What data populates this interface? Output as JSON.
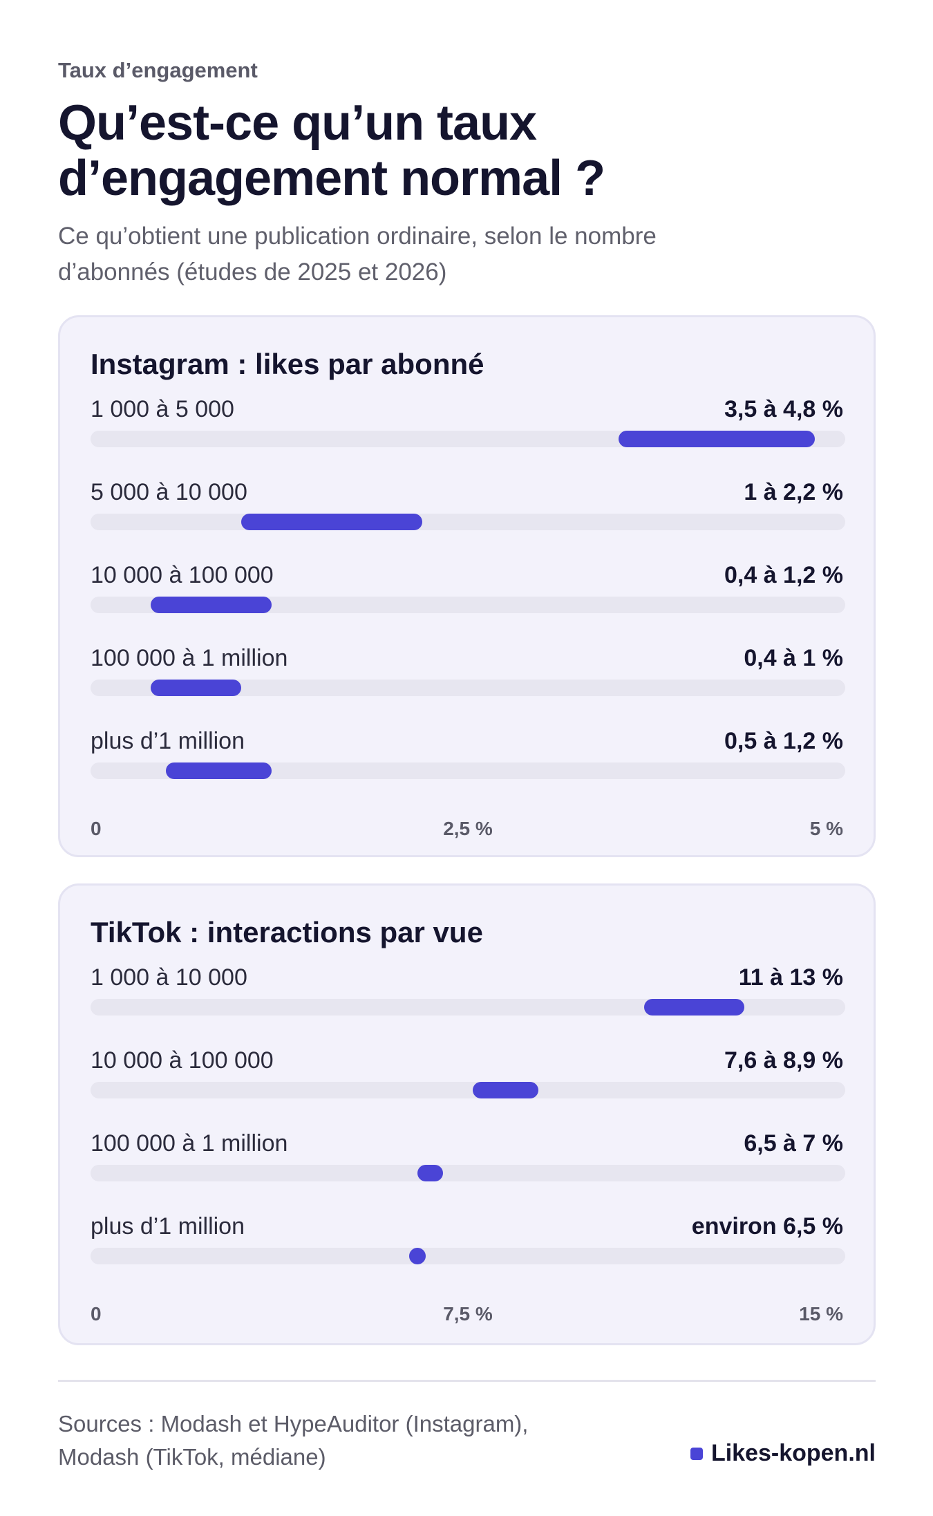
{
  "header": {
    "kicker": "Taux d’engagement",
    "title_line1": "Qu’est-ce qu’un taux",
    "title_line2": "d’engagement normal ?",
    "subtitle_line1": "Ce qu’obtient une publication ordinaire, selon le nombre",
    "subtitle_line2": "d’abonnés (études de 2025 et 2026)"
  },
  "chart_data": [
    {
      "type": "bar",
      "title": "Instagram : likes par abonné",
      "xlim": [
        0,
        5
      ],
      "ticks": [
        "0",
        "2,5 %",
        "5 %"
      ],
      "rows": [
        {
          "label": "1 000 à 5 000",
          "value_text": "3,5 à 4,8 %",
          "low": 3.5,
          "high": 4.8
        },
        {
          "label": "5 000 à 10 000",
          "value_text": "1 à 2,2 %",
          "low": 1.0,
          "high": 2.2
        },
        {
          "label": "10 000 à 100 000",
          "value_text": "0,4 à 1,2 %",
          "low": 0.4,
          "high": 1.2
        },
        {
          "label": "100 000 à 1 million",
          "value_text": "0,4 à 1 %",
          "low": 0.4,
          "high": 1.0
        },
        {
          "label": "plus d’1 million",
          "value_text": "0,5 à 1,2 %",
          "low": 0.5,
          "high": 1.2
        }
      ]
    },
    {
      "type": "bar",
      "title": "TikTok : interactions par vue",
      "xlim": [
        0,
        15
      ],
      "ticks": [
        "0",
        "7,5 %",
        "15 %"
      ],
      "rows": [
        {
          "label": "1 000 à 10 000",
          "value_text": "11 à 13 %",
          "low": 11,
          "high": 13
        },
        {
          "label": "10 000 à 100 000",
          "value_text": "7,6 à 8,9 %",
          "low": 7.6,
          "high": 8.9
        },
        {
          "label": "100 000 à 1 million",
          "value_text": "6,5 à 7 %",
          "low": 6.5,
          "high": 7.0
        },
        {
          "label": "plus d’1 million",
          "value_text": "environ 6,5 %",
          "low": 6.5,
          "high": 6.5
        }
      ]
    }
  ],
  "footer": {
    "sources_line1": "Sources : Modash et HypeAuditor (Instagram),",
    "sources_line2": "Modash (TikTok, médiane)",
    "brand": "Likes-kopen.nl"
  },
  "colors": {
    "accent": "#4a44d6",
    "track": "#e7e6f0",
    "card_bg": "#f3f2fb",
    "text": "#15152e"
  }
}
